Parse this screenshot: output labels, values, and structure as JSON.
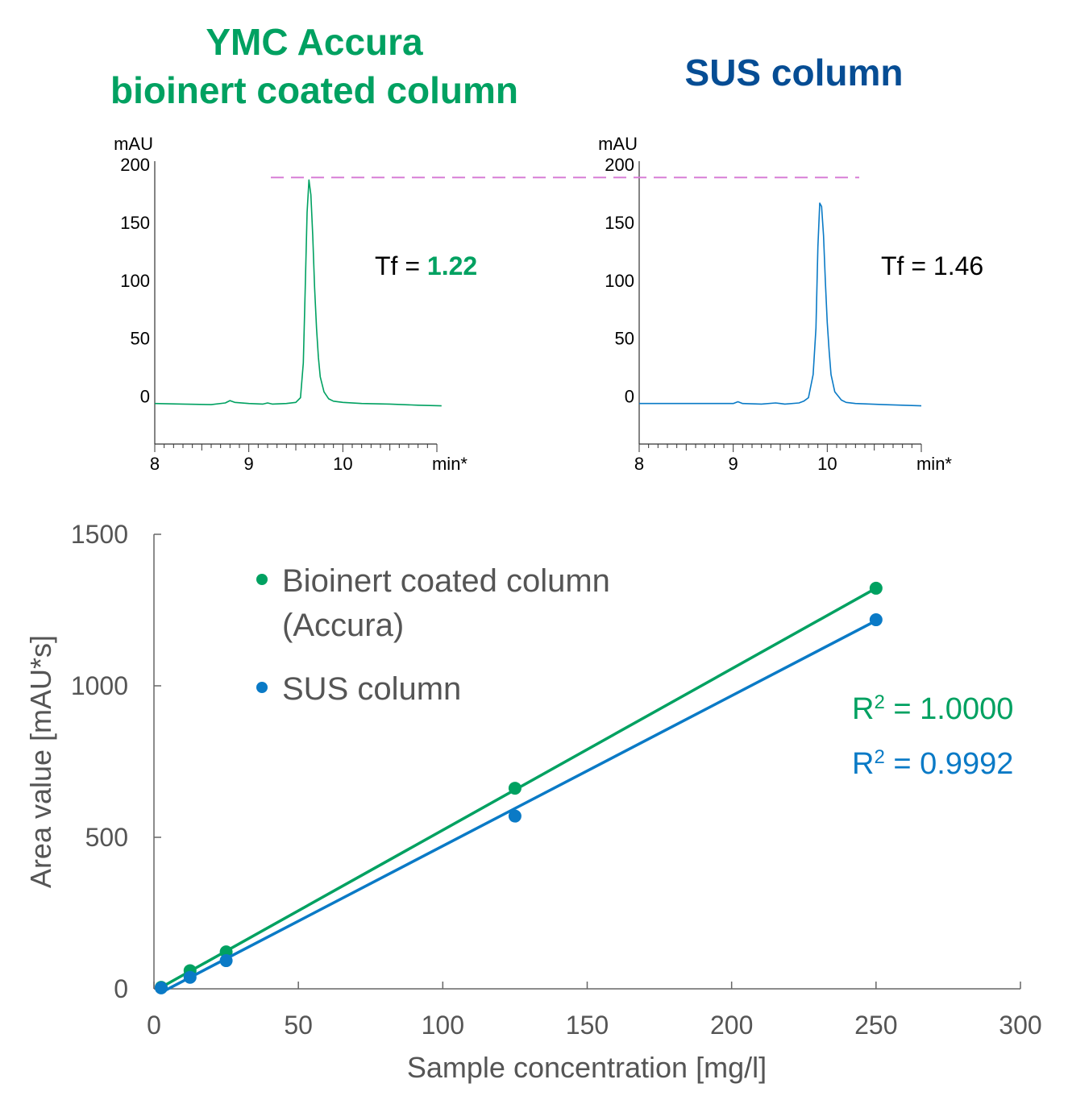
{
  "headers": {
    "left_line1": "YMC Accura",
    "left_line2": "bioinert coated column",
    "right": "SUS column"
  },
  "colors": {
    "green": "#00a161",
    "navy": "#064d94",
    "blue": "#0a7ac6",
    "dash": "#d77ed6",
    "axis": "#666666",
    "text": "#555555"
  },
  "chart_data": [
    {
      "type": "line",
      "panel": "chromatogram-accura",
      "ylabel": "mAU",
      "xlabel": "min*",
      "xlim": [
        8,
        11
      ],
      "ylim": [
        -40,
        200
      ],
      "xticks": [
        8,
        9,
        10
      ],
      "yticks": [
        0,
        50,
        100,
        150,
        200
      ],
      "annotation": {
        "prefix": "Tf = ",
        "value": "1.22"
      },
      "series": [
        {
          "x": [
            8.0,
            8.3,
            8.6,
            8.75,
            8.8,
            8.85,
            9.0,
            9.15,
            9.2,
            9.25,
            9.4,
            9.5,
            9.55,
            9.58,
            9.6,
            9.62,
            9.64,
            9.66,
            9.68,
            9.7,
            9.72,
            9.74,
            9.76,
            9.8,
            9.85,
            9.9,
            10.0,
            10.2,
            10.5,
            10.8,
            11.05
          ],
          "y": [
            -5,
            -5.5,
            -6,
            -4.5,
            -2.5,
            -4,
            -5,
            -5.5,
            -4.5,
            -5.5,
            -5,
            -4,
            0,
            30,
            95,
            160,
            188,
            175,
            140,
            95,
            60,
            35,
            18,
            5,
            -1,
            -3,
            -4,
            -5,
            -5.5,
            -6.5,
            -7
          ]
        }
      ]
    },
    {
      "type": "line",
      "panel": "chromatogram-sus",
      "ylabel": "mAU",
      "xlabel": "min*",
      "xlim": [
        8,
        11
      ],
      "ylim": [
        -40,
        200
      ],
      "xticks": [
        8,
        9,
        10
      ],
      "yticks": [
        0,
        50,
        100,
        150,
        200
      ],
      "annotation": {
        "prefix": "Tf = ",
        "value": "1.46"
      },
      "series": [
        {
          "x": [
            8.0,
            8.5,
            9.0,
            9.05,
            9.1,
            9.3,
            9.45,
            9.5,
            9.55,
            9.7,
            9.75,
            9.8,
            9.85,
            9.88,
            9.9,
            9.92,
            9.94,
            9.96,
            9.98,
            10.0,
            10.02,
            10.04,
            10.08,
            10.15,
            10.2,
            10.3,
            10.6,
            11.0
          ],
          "y": [
            -5,
            -5,
            -5,
            -3.5,
            -5,
            -5.5,
            -4.5,
            -5,
            -5.5,
            -4.5,
            -3,
            0,
            20,
            60,
            130,
            168,
            165,
            140,
            100,
            65,
            40,
            20,
            5,
            -2,
            -4,
            -5,
            -6,
            -7
          ]
        }
      ]
    },
    {
      "type": "scatter",
      "panel": "calibration",
      "xlabel": "Sample concentration [mg/l]",
      "ylabel": "Area value [mAU*s]",
      "xlim": [
        0,
        300
      ],
      "ylim": [
        0,
        1500
      ],
      "xticks": [
        0,
        50,
        100,
        150,
        200,
        250,
        300
      ],
      "yticks": [
        0,
        500,
        1000,
        1500
      ],
      "legend_position": "top-left",
      "series": [
        {
          "name_line1": "Bioinert coated column",
          "name_line2": "(Accura)",
          "color": "green",
          "x": [
            2.5,
            12.5,
            25,
            125,
            250
          ],
          "y": [
            5,
            60,
            122,
            662,
            1322
          ],
          "fit": {
            "x": [
              2.5,
              250
            ],
            "y": [
              5,
              1322
            ]
          },
          "r2_label": "R",
          "r2_sup": "2",
          "r2_value": " = 1.0000"
        },
        {
          "name_line1": "SUS column",
          "color": "blue",
          "x": [
            2.5,
            12.5,
            25,
            125,
            250
          ],
          "y": [
            3,
            38,
            93,
            570,
            1218
          ],
          "fit": {
            "x": [
              2.5,
              250
            ],
            "y": [
              -12,
              1215
            ]
          },
          "r2_label": "R",
          "r2_sup": "2",
          "r2_value": " = 0.9992"
        }
      ]
    }
  ]
}
